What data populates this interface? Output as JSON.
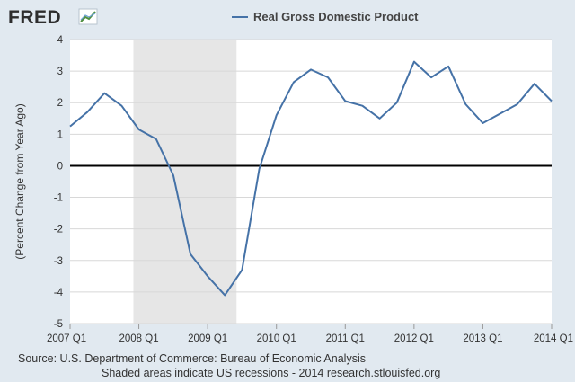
{
  "header": {
    "logo_text": "FRED",
    "legend_label": "Real Gross Domestic Product"
  },
  "colors": {
    "page_background": "#e1e9f0",
    "plot_background": "#ffffff",
    "series_line": "#4572a7",
    "recession_shade": "#e6e6e6",
    "gridline": "#d8d8d8",
    "zero_line": "#000000"
  },
  "footer": {
    "source": "Source: U.S. Department of Commerce: Bureau of Economic Analysis",
    "note": "Shaded areas indicate US recessions - 2014 research.stlouisfed.org"
  },
  "chart_data": {
    "type": "line",
    "title": "",
    "xlabel": "",
    "ylabel": "(Percent Change from Year Ago)",
    "xlim": [
      2007.0,
      2014.0
    ],
    "ylim": [
      -5,
      4
    ],
    "yticks": [
      -5,
      -4,
      -3,
      -2,
      -1,
      0,
      1,
      2,
      3,
      4
    ],
    "ytick_labels": [
      "-5",
      "-4",
      "-3",
      "-2",
      "-1",
      "0",
      "1",
      "2",
      "3",
      "4"
    ],
    "xticks": [
      2007.0,
      2008.0,
      2009.0,
      2010.0,
      2011.0,
      2012.0,
      2013.0,
      2014.0
    ],
    "xtick_labels": [
      "2007 Q1",
      "2008 Q1",
      "2009 Q1",
      "2010 Q1",
      "2011 Q1",
      "2012 Q1",
      "2013 Q1",
      "2014 Q1"
    ],
    "grid": true,
    "legend_position": "top",
    "recession_shading": [
      [
        2007.92,
        2009.42
      ]
    ],
    "series": [
      {
        "name": "Real Gross Domestic Product",
        "x": [
          2007.0,
          2007.25,
          2007.5,
          2007.75,
          2008.0,
          2008.25,
          2008.5,
          2008.75,
          2009.0,
          2009.25,
          2009.5,
          2009.75,
          2010.0,
          2010.25,
          2010.5,
          2010.75,
          2011.0,
          2011.25,
          2011.5,
          2011.75,
          2012.0,
          2012.25,
          2012.5,
          2012.75,
          2013.0,
          2013.25,
          2013.5,
          2013.75,
          2014.0
        ],
        "values": [
          1.25,
          1.7,
          2.3,
          1.9,
          1.15,
          0.85,
          -0.3,
          -2.8,
          -3.5,
          -4.1,
          -3.3,
          -0.1,
          1.6,
          2.65,
          3.05,
          2.8,
          2.05,
          1.9,
          1.5,
          2.0,
          3.3,
          2.8,
          3.15,
          1.95,
          1.35,
          1.65,
          1.95,
          2.6,
          2.05
        ]
      }
    ]
  }
}
